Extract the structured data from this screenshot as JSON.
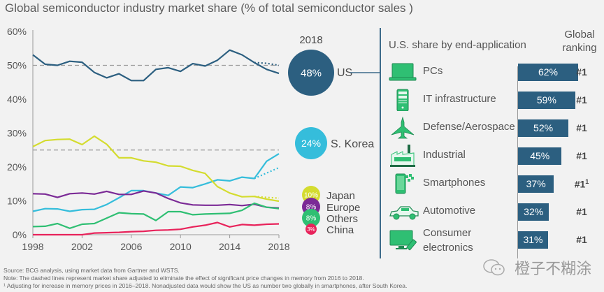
{
  "title": "Global semiconductor industry market share (% of total semiconductor sales )",
  "chart_data": {
    "type": "line",
    "title": "Global semiconductor industry market share (% of total semiconductor sales )",
    "xlabel": "",
    "ylabel": "",
    "x": [
      1998,
      1999,
      2000,
      2001,
      2002,
      2003,
      2004,
      2005,
      2006,
      2007,
      2008,
      2009,
      2010,
      2011,
      2012,
      2013,
      2014,
      2015,
      2016,
      2017,
      2018
    ],
    "xticks": [
      "1998",
      "2002",
      "2006",
      "2010",
      "2014",
      "2018"
    ],
    "yticks": [
      "0%",
      "10%",
      "20%",
      "30%",
      "40%",
      "50%",
      "60%"
    ],
    "ylim": [
      0,
      60
    ],
    "series": [
      {
        "name": "US",
        "color": "#2c5f80",
        "values": [
          53.1,
          50.3,
          50.0,
          51.2,
          50.9,
          47.9,
          46.3,
          47.5,
          45.5,
          45.5,
          48.8,
          49.3,
          48.2,
          50.5,
          49.8,
          51.5,
          54.5,
          53.1,
          50.8,
          48.8,
          47.6
        ],
        "adjusted": {
          "x": [
            2016,
            2017,
            2018
          ],
          "values": [
            50.8,
            50.6,
            50.0
          ]
        },
        "reference_line": 50
      },
      {
        "name": "S. Korea",
        "color": "#35bddb",
        "values": [
          6.9,
          7.7,
          7.6,
          6.9,
          7.4,
          7.5,
          8.9,
          10.9,
          13.0,
          13.0,
          12.3,
          11.6,
          14.1,
          13.9,
          15.0,
          16.2,
          15.9,
          17.0,
          16.6,
          21.7,
          23.9
        ],
        "adjusted": {
          "x": [
            2016,
            2017,
            2018
          ],
          "values": [
            16.6,
            18.2,
            19.8
          ]
        }
      },
      {
        "name": "Japan",
        "color": "#d4dc2f",
        "values": [
          26.0,
          27.8,
          28.1,
          28.2,
          26.6,
          29.1,
          26.7,
          22.7,
          22.7,
          21.8,
          21.4,
          20.3,
          20.2,
          19.0,
          18.1,
          14.2,
          12.3,
          11.2,
          11.3,
          10.5,
          9.9
        ],
        "adjusted": {
          "x": [
            2016,
            2017,
            2018
          ],
          "values": [
            11.3,
            11.0,
            10.8
          ]
        },
        "reference_line": 25
      },
      {
        "name": "Europe",
        "color": "#7b2a96",
        "values": [
          12.1,
          12.0,
          11.0,
          12.1,
          12.3,
          12.0,
          12.8,
          11.9,
          11.9,
          12.9,
          12.3,
          10.7,
          9.4,
          8.8,
          8.7,
          8.7,
          8.9,
          8.6,
          9.0,
          8.1,
          7.9
        ]
      },
      {
        "name": "Others",
        "color": "#2fbf73",
        "values": [
          2.4,
          2.5,
          3.3,
          1.9,
          3.1,
          3.3,
          4.9,
          6.5,
          6.2,
          6.1,
          4.2,
          6.8,
          6.8,
          5.9,
          6.1,
          6.2,
          6.3,
          7.2,
          9.3,
          8.1,
          7.7
        ]
      },
      {
        "name": "China",
        "color": "#e8235b",
        "values": [
          0.0,
          0.0,
          0.0,
          0.0,
          0.0,
          0.5,
          0.6,
          0.7,
          0.9,
          1.0,
          1.3,
          1.4,
          1.6,
          2.3,
          2.8,
          3.6,
          2.3,
          3.0,
          2.8,
          3.1,
          3.2
        ]
      }
    ],
    "bubbles_2018": {
      "header": "2018",
      "items": [
        {
          "label": "US",
          "value": "48%",
          "color": "#2c5f80"
        },
        {
          "label": "S. Korea",
          "value": "24%",
          "color": "#35bddb"
        },
        {
          "label": "Japan",
          "value": "10%",
          "color": "#d4dc2f"
        },
        {
          "label": "Europe",
          "value": "8%",
          "color": "#7b2a96"
        },
        {
          "label": "Others",
          "value": "8%",
          "color": "#2fbf73"
        },
        {
          "label": "China",
          "value": "3%",
          "color": "#e8235b"
        }
      ]
    },
    "grid": false,
    "legend": "right"
  },
  "us_share": {
    "title": "U.S. share by end-application",
    "ranking_header": "Global ranking",
    "bar_color": "#2c5f80",
    "icon_color": "#2fbf73",
    "rows": [
      {
        "icon": "laptop-icon",
        "label": "PCs",
        "value": 62,
        "value_label": "62%",
        "rank": "#1",
        "footnote": ""
      },
      {
        "icon": "server-icon",
        "label": "IT infrastructure",
        "value": 59,
        "value_label": "59%",
        "rank": "#1",
        "footnote": ""
      },
      {
        "icon": "airplane-icon",
        "label": "Defense/Aerospace",
        "value": 52,
        "value_label": "52%",
        "rank": "#1",
        "footnote": ""
      },
      {
        "icon": "factory-icon",
        "label": "Industrial",
        "value": 45,
        "value_label": "45%",
        "rank": "#1",
        "footnote": ""
      },
      {
        "icon": "smartphone-icon",
        "label": "Smartphones",
        "value": 37,
        "value_label": "37%",
        "rank": "#1",
        "footnote": "1"
      },
      {
        "icon": "car-icon",
        "label": "Automotive",
        "value": 32,
        "value_label": "32%",
        "rank": "#1",
        "footnote": ""
      },
      {
        "icon": "tv-icon",
        "label": "Consumer electronics",
        "label_line1": "Consumer",
        "label_line2": "electronics",
        "value": 31,
        "value_label": "31%",
        "rank": "#1",
        "footnote": ""
      }
    ]
  },
  "footnotes": {
    "source": "Source: BCG analysis, using market data from Gartner and WSTS.",
    "note": "Note: The dashed lines represent market share adjusted to eliminate the effect of significant price changes in memory from 2016 to 2018.",
    "footnote1": "¹ Adjusting for increase in memory prices in 2016–2018. Nonadjusted data would show the US as number two globally in smartphones, after South Korea."
  },
  "watermark": "橙子不糊涂"
}
